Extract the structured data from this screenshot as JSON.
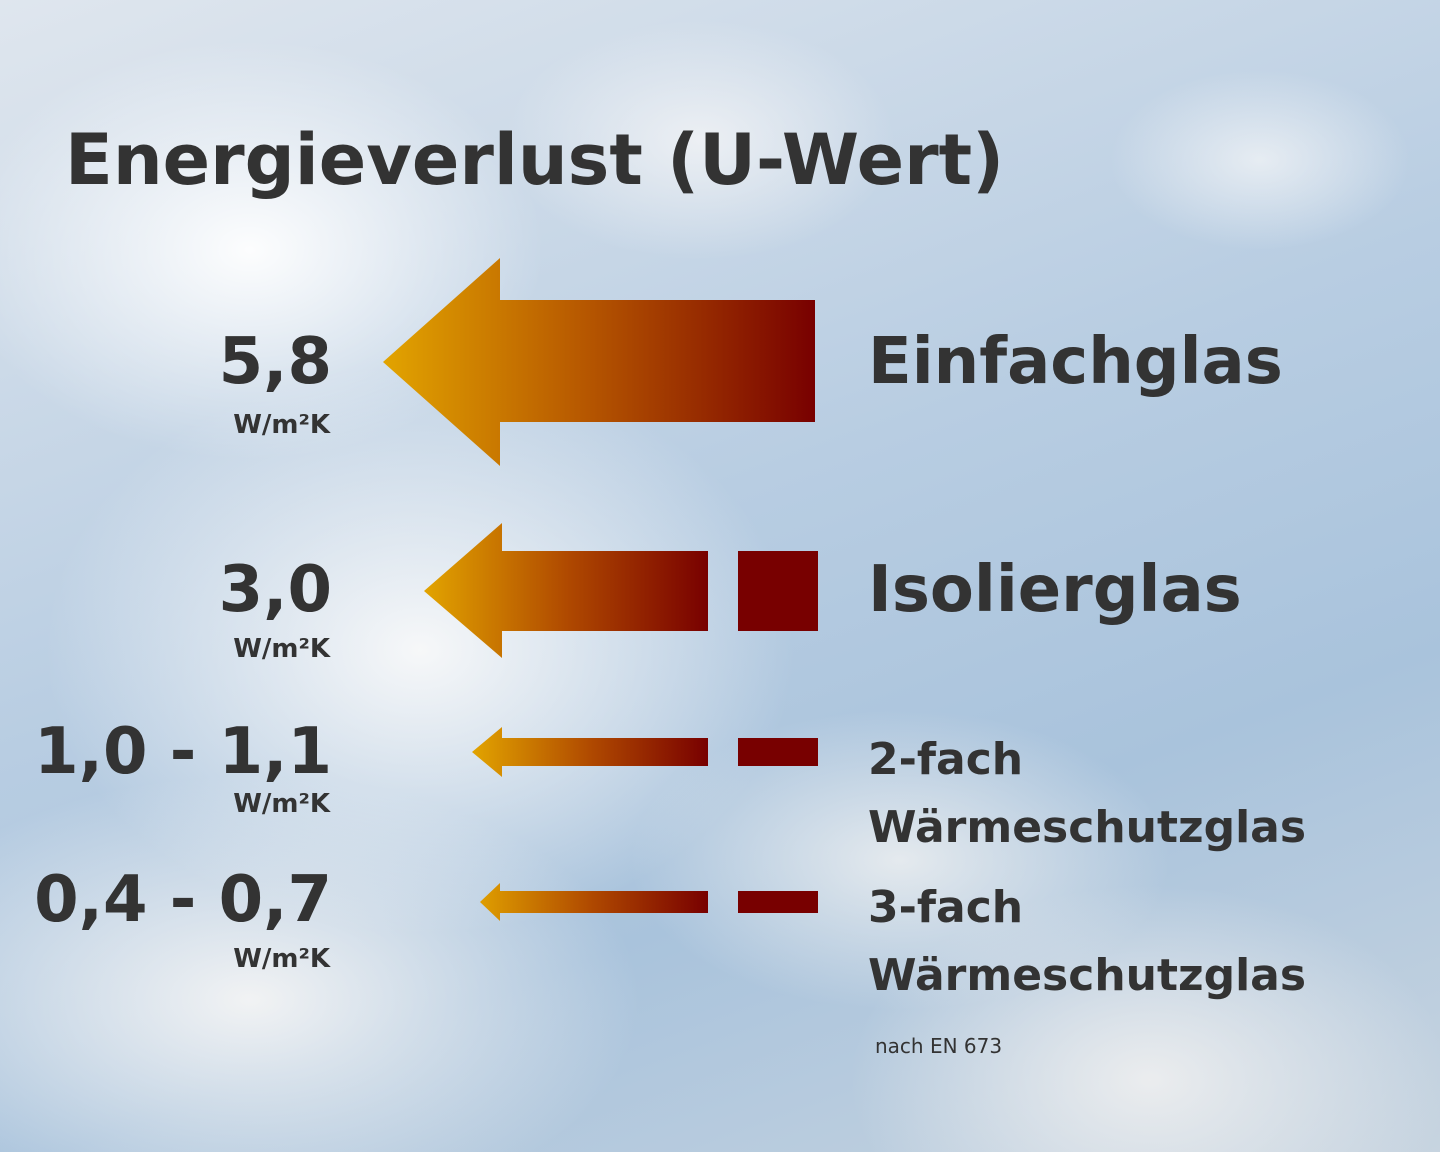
{
  "title": "Energieverlust (U-Wert)",
  "rows": [
    {
      "value": "5,8",
      "unit": "W/m²K",
      "label": "Einfachglas"
    },
    {
      "value": "3,0",
      "unit": "W/m²K",
      "label": "Isolierglas"
    },
    {
      "value": "1,0 - 1,1",
      "unit": "W/m²K",
      "label": "2-fach Wärmeschutzglas"
    },
    {
      "value": "0,4 - 0,7",
      "unit": "W/m²K",
      "label": "3-fach Wärmeschutzglas"
    }
  ],
  "footnote": "nach EN 673"
}
